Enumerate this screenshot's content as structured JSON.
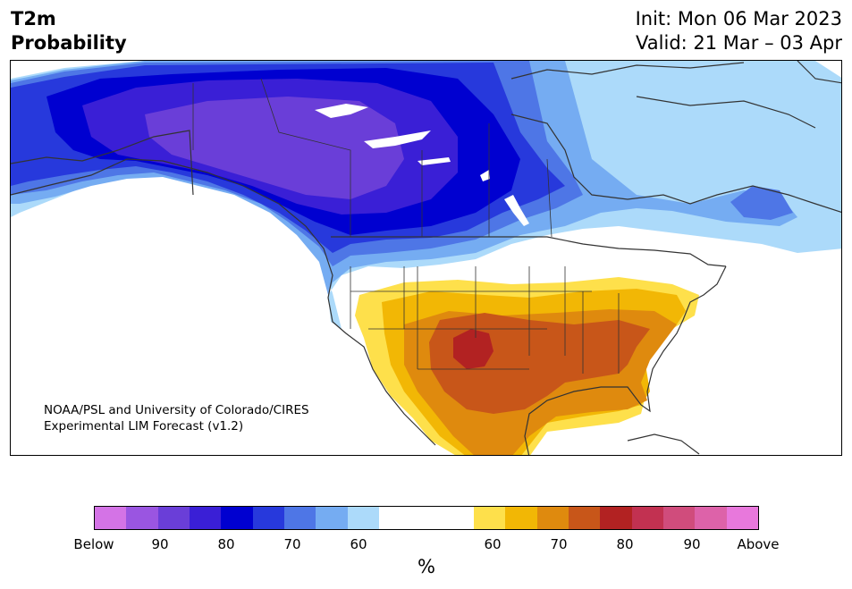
{
  "header": {
    "title_line1": "T2m",
    "title_line2": "Probability",
    "init": "Init: Mon 06 Mar 2023",
    "valid": "Valid: 21 Mar – 03 Apr"
  },
  "credit": {
    "line1": "NOAA/PSL and University of Colorado/CIRES",
    "line2": "Experimental LIM Forecast (v1.2)"
  },
  "colorbar": {
    "unit": "%",
    "tick_labels": [
      "Below",
      "90",
      "80",
      "70",
      "60",
      "60",
      "70",
      "80",
      "90",
      "Above"
    ],
    "colors": [
      "#d473e6",
      "#9a55e1",
      "#6a3ed8",
      "#3a1fd6",
      "#0000d0",
      "#2739dc",
      "#4e76e6",
      "#75acf2",
      "#acdafa",
      "#ffffff",
      "#fee04b",
      "#f2b705",
      "#df8a0e",
      "#c85619",
      "#b22222",
      "#c23151",
      "#d04c7c",
      "#dd62a9",
      "#e878dc"
    ]
  },
  "map": {
    "legend_colors": {
      "below_strongest": "#6a3ed8",
      "below_90": "#3a1fd6",
      "below_80": "#0000d0",
      "below_70": "#2739dc",
      "below_65": "#4e76e6",
      "below_60": "#75acf2",
      "below_55": "#acdafa",
      "above_55": "#fee04b",
      "above_60": "#f2b705",
      "above_65": "#df8a0e",
      "above_70": "#c85619",
      "above_75": "#b22222",
      "water": "#ffffff",
      "coastline": "#333333"
    }
  }
}
